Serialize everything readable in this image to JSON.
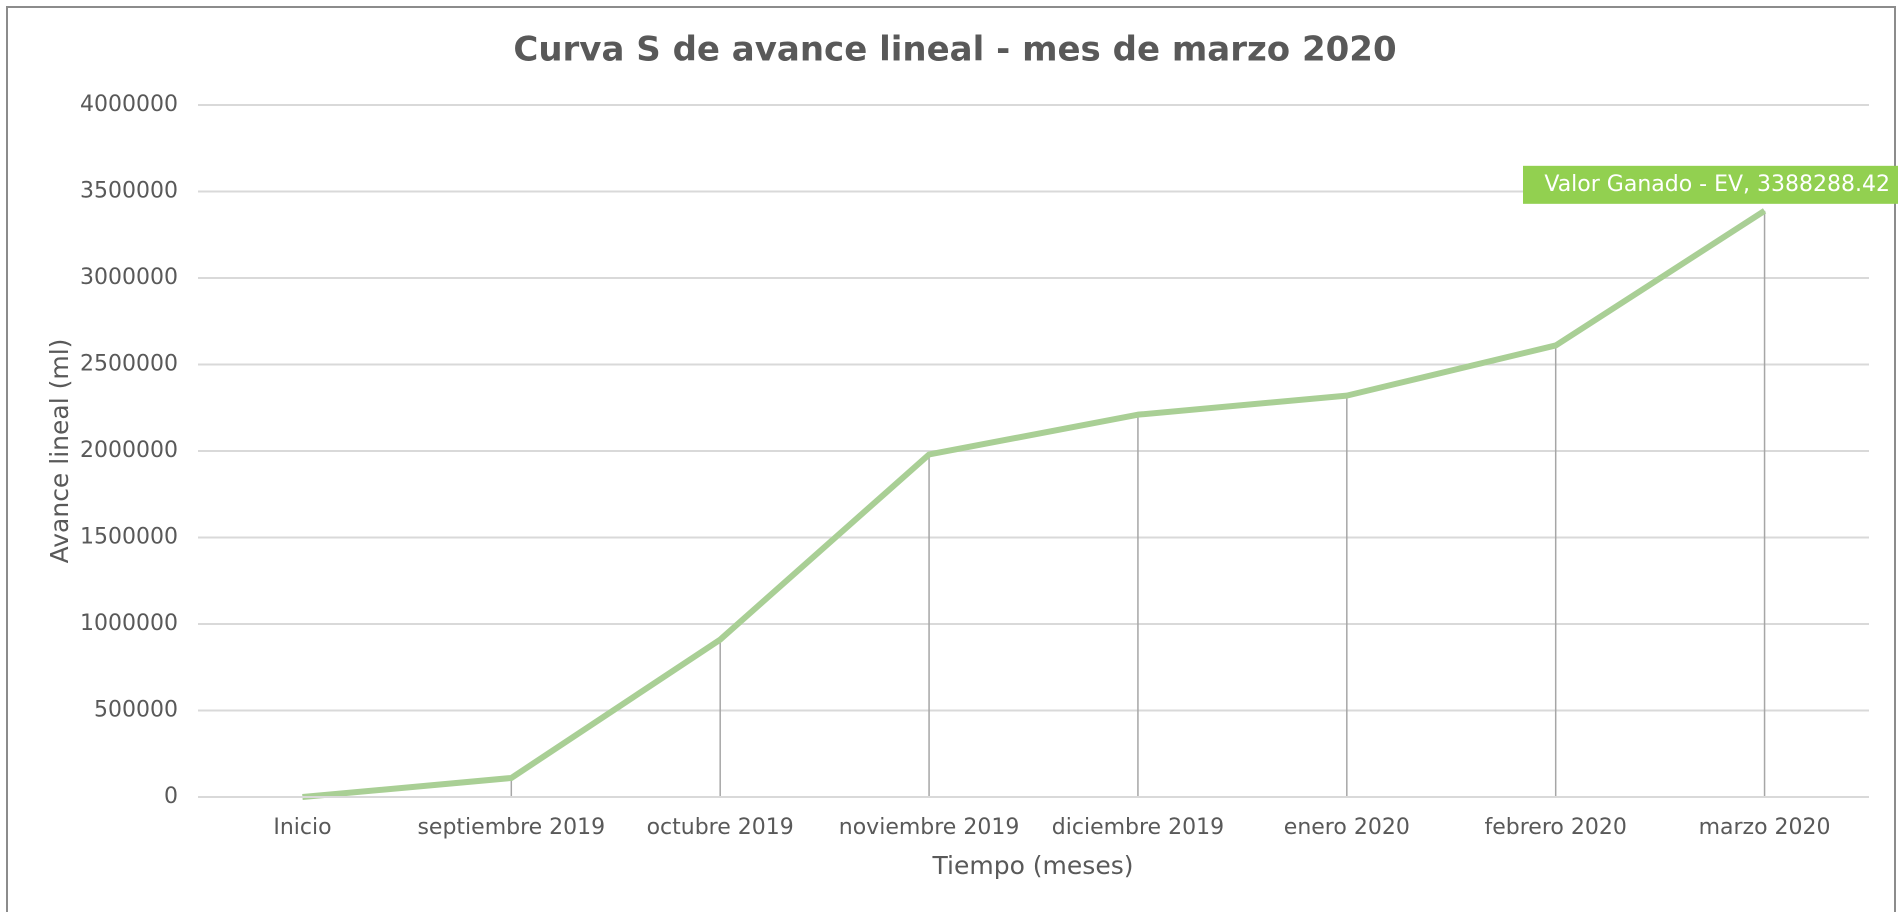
{
  "chart_data": {
    "type": "line",
    "title": "Curva S de avance lineal - mes de marzo 2020",
    "x_label": "Tiempo (meses)",
    "y_label": "Avance lineal (ml)",
    "categories": [
      "Inicio",
      "septiembre 2019",
      "octubre 2019",
      "noviembre 2019",
      "diciembre 2019",
      "enero 2020",
      "febrero 2020",
      "marzo 2020"
    ],
    "series": [
      {
        "name": "Valor Ganado - EV",
        "color": "#a9cf95",
        "values": [
          0,
          110000,
          910000,
          1980000,
          2210000,
          2320000,
          2610000,
          3388288.42
        ],
        "value_labels": [
          null,
          null,
          null,
          null,
          null,
          null,
          null,
          "Valor Ganado - EV, 3388288.42"
        ]
      }
    ],
    "ylim": [
      0,
      4000000
    ],
    "yticks": [
      0,
      500000,
      1000000,
      1500000,
      2000000,
      2500000,
      3000000,
      3500000,
      4000000
    ],
    "grid": true,
    "drop_lines": true,
    "label_color": "#92d050"
  }
}
